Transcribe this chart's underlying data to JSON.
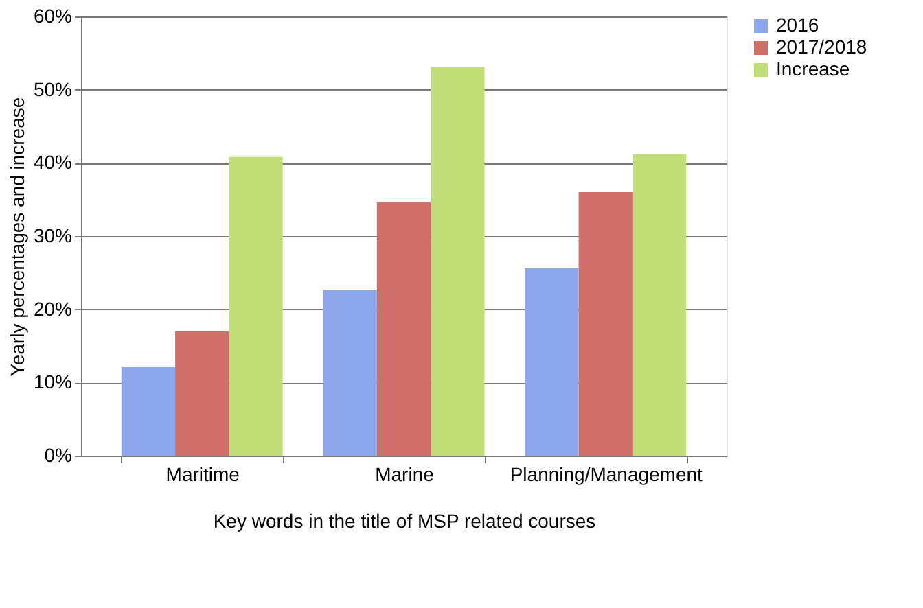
{
  "chart_data": {
    "type": "bar",
    "xlabel": "Key words in the title of MSP related courses",
    "ylabel": "Yearly percentages and increase",
    "categories": [
      "Maritime",
      "Marine",
      "Planning/Management"
    ],
    "series": [
      {
        "name": "2016",
        "color": "#8ea6ec",
        "values": [
          12.1,
          22.6,
          25.6
        ]
      },
      {
        "name": "2017/2018",
        "color": "#cf706a",
        "values": [
          17.0,
          34.6,
          36.0
        ]
      },
      {
        "name": "Increase",
        "color": "#c2de78",
        "values": [
          40.8,
          53.1,
          41.2
        ]
      }
    ],
    "ylim": [
      0,
      60
    ],
    "yticks": [
      {
        "value": 0,
        "label": "0%"
      },
      {
        "value": 10,
        "label": "10%"
      },
      {
        "value": 20,
        "label": "20%"
      },
      {
        "value": 30,
        "label": "30%"
      },
      {
        "value": 40,
        "label": "40%"
      },
      {
        "value": 50,
        "label": "50%"
      },
      {
        "value": 60,
        "label": "60%"
      }
    ],
    "grid": "y",
    "legend": "right"
  }
}
